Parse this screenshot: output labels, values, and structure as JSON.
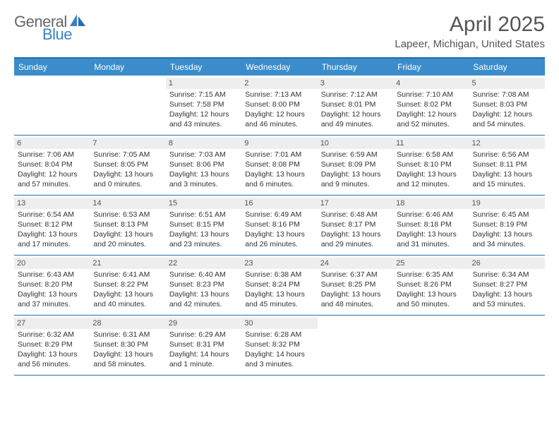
{
  "logo": {
    "text_general": "General",
    "text_blue": "Blue"
  },
  "title": "April 2025",
  "location": "Lapeer, Michigan, United States",
  "colors": {
    "header_bg": "#3a8dca",
    "header_text": "#ffffff",
    "rule": "#1f6fb2",
    "daynum_bg": "#eeeeee",
    "body_text": "#333333",
    "muted": "#555555"
  },
  "weekdays": [
    "Sunday",
    "Monday",
    "Tuesday",
    "Wednesday",
    "Thursday",
    "Friday",
    "Saturday"
  ],
  "weeks": [
    [
      null,
      null,
      {
        "n": "1",
        "l": [
          "Sunrise: 7:15 AM",
          "Sunset: 7:58 PM",
          "Daylight: 12 hours",
          "and 43 minutes."
        ]
      },
      {
        "n": "2",
        "l": [
          "Sunrise: 7:13 AM",
          "Sunset: 8:00 PM",
          "Daylight: 12 hours",
          "and 46 minutes."
        ]
      },
      {
        "n": "3",
        "l": [
          "Sunrise: 7:12 AM",
          "Sunset: 8:01 PM",
          "Daylight: 12 hours",
          "and 49 minutes."
        ]
      },
      {
        "n": "4",
        "l": [
          "Sunrise: 7:10 AM",
          "Sunset: 8:02 PM",
          "Daylight: 12 hours",
          "and 52 minutes."
        ]
      },
      {
        "n": "5",
        "l": [
          "Sunrise: 7:08 AM",
          "Sunset: 8:03 PM",
          "Daylight: 12 hours",
          "and 54 minutes."
        ]
      }
    ],
    [
      {
        "n": "6",
        "l": [
          "Sunrise: 7:06 AM",
          "Sunset: 8:04 PM",
          "Daylight: 12 hours",
          "and 57 minutes."
        ]
      },
      {
        "n": "7",
        "l": [
          "Sunrise: 7:05 AM",
          "Sunset: 8:05 PM",
          "Daylight: 13 hours",
          "and 0 minutes."
        ]
      },
      {
        "n": "8",
        "l": [
          "Sunrise: 7:03 AM",
          "Sunset: 8:06 PM",
          "Daylight: 13 hours",
          "and 3 minutes."
        ]
      },
      {
        "n": "9",
        "l": [
          "Sunrise: 7:01 AM",
          "Sunset: 8:08 PM",
          "Daylight: 13 hours",
          "and 6 minutes."
        ]
      },
      {
        "n": "10",
        "l": [
          "Sunrise: 6:59 AM",
          "Sunset: 8:09 PM",
          "Daylight: 13 hours",
          "and 9 minutes."
        ]
      },
      {
        "n": "11",
        "l": [
          "Sunrise: 6:58 AM",
          "Sunset: 8:10 PM",
          "Daylight: 13 hours",
          "and 12 minutes."
        ]
      },
      {
        "n": "12",
        "l": [
          "Sunrise: 6:56 AM",
          "Sunset: 8:11 PM",
          "Daylight: 13 hours",
          "and 15 minutes."
        ]
      }
    ],
    [
      {
        "n": "13",
        "l": [
          "Sunrise: 6:54 AM",
          "Sunset: 8:12 PM",
          "Daylight: 13 hours",
          "and 17 minutes."
        ]
      },
      {
        "n": "14",
        "l": [
          "Sunrise: 6:53 AM",
          "Sunset: 8:13 PM",
          "Daylight: 13 hours",
          "and 20 minutes."
        ]
      },
      {
        "n": "15",
        "l": [
          "Sunrise: 6:51 AM",
          "Sunset: 8:15 PM",
          "Daylight: 13 hours",
          "and 23 minutes."
        ]
      },
      {
        "n": "16",
        "l": [
          "Sunrise: 6:49 AM",
          "Sunset: 8:16 PM",
          "Daylight: 13 hours",
          "and 26 minutes."
        ]
      },
      {
        "n": "17",
        "l": [
          "Sunrise: 6:48 AM",
          "Sunset: 8:17 PM",
          "Daylight: 13 hours",
          "and 29 minutes."
        ]
      },
      {
        "n": "18",
        "l": [
          "Sunrise: 6:46 AM",
          "Sunset: 8:18 PM",
          "Daylight: 13 hours",
          "and 31 minutes."
        ]
      },
      {
        "n": "19",
        "l": [
          "Sunrise: 6:45 AM",
          "Sunset: 8:19 PM",
          "Daylight: 13 hours",
          "and 34 minutes."
        ]
      }
    ],
    [
      {
        "n": "20",
        "l": [
          "Sunrise: 6:43 AM",
          "Sunset: 8:20 PM",
          "Daylight: 13 hours",
          "and 37 minutes."
        ]
      },
      {
        "n": "21",
        "l": [
          "Sunrise: 6:41 AM",
          "Sunset: 8:22 PM",
          "Daylight: 13 hours",
          "and 40 minutes."
        ]
      },
      {
        "n": "22",
        "l": [
          "Sunrise: 6:40 AM",
          "Sunset: 8:23 PM",
          "Daylight: 13 hours",
          "and 42 minutes."
        ]
      },
      {
        "n": "23",
        "l": [
          "Sunrise: 6:38 AM",
          "Sunset: 8:24 PM",
          "Daylight: 13 hours",
          "and 45 minutes."
        ]
      },
      {
        "n": "24",
        "l": [
          "Sunrise: 6:37 AM",
          "Sunset: 8:25 PM",
          "Daylight: 13 hours",
          "and 48 minutes."
        ]
      },
      {
        "n": "25",
        "l": [
          "Sunrise: 6:35 AM",
          "Sunset: 8:26 PM",
          "Daylight: 13 hours",
          "and 50 minutes."
        ]
      },
      {
        "n": "26",
        "l": [
          "Sunrise: 6:34 AM",
          "Sunset: 8:27 PM",
          "Daylight: 13 hours",
          "and 53 minutes."
        ]
      }
    ],
    [
      {
        "n": "27",
        "l": [
          "Sunrise: 6:32 AM",
          "Sunset: 8:29 PM",
          "Daylight: 13 hours",
          "and 56 minutes."
        ]
      },
      {
        "n": "28",
        "l": [
          "Sunrise: 6:31 AM",
          "Sunset: 8:30 PM",
          "Daylight: 13 hours",
          "and 58 minutes."
        ]
      },
      {
        "n": "29",
        "l": [
          "Sunrise: 6:29 AM",
          "Sunset: 8:31 PM",
          "Daylight: 14 hours",
          "and 1 minute."
        ]
      },
      {
        "n": "30",
        "l": [
          "Sunrise: 6:28 AM",
          "Sunset: 8:32 PM",
          "Daylight: 14 hours",
          "and 3 minutes."
        ]
      },
      null,
      null,
      null
    ]
  ]
}
